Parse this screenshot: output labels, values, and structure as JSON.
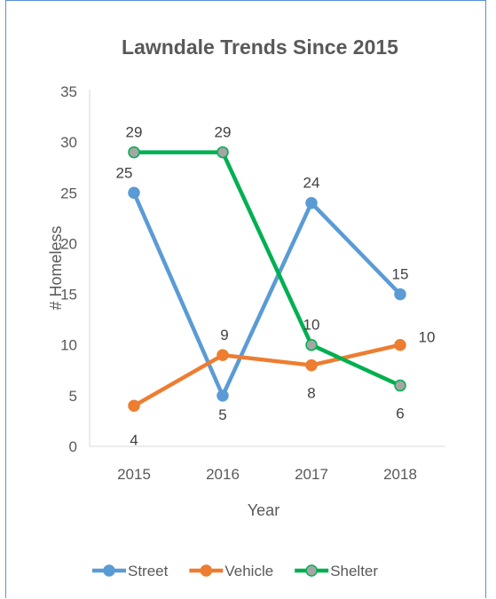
{
  "chart_data": {
    "type": "line",
    "title": "Lawndale Trends Since 2015",
    "xlabel": "Year",
    "ylabel": "# Homeless",
    "categories": [
      "2015",
      "2016",
      "2017",
      "2018"
    ],
    "ylim": [
      0,
      35
    ],
    "yticks": [
      "0",
      "5",
      "10",
      "15",
      "20",
      "25",
      "30",
      "35"
    ],
    "grid": false,
    "legend_position": "bottom",
    "series": [
      {
        "name": "Street",
        "values": [
          25,
          5,
          24,
          15
        ],
        "color": "#5b9bd5"
      },
      {
        "name": "Vehicle",
        "values": [
          4,
          9,
          8,
          10
        ],
        "color": "#ed7d31"
      },
      {
        "name": "Shelter",
        "values": [
          29,
          29,
          10,
          6
        ],
        "color": "#00b050",
        "marker_fill": "#a5a5a5"
      }
    ]
  }
}
